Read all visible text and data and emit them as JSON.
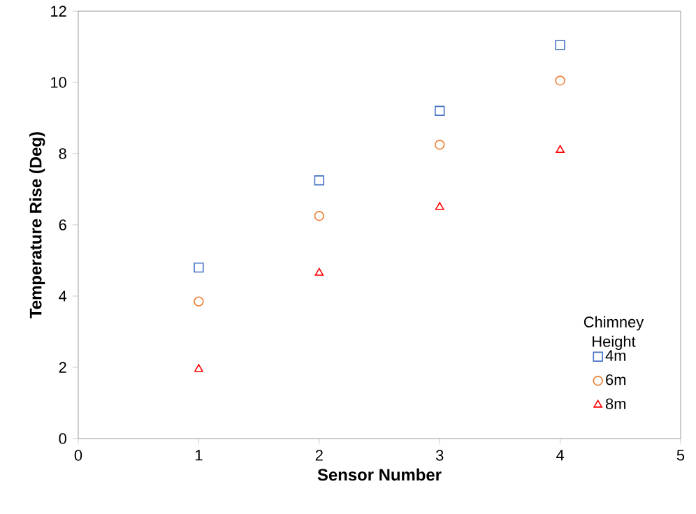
{
  "chart_data": {
    "type": "scatter",
    "xlabel": "Sensor Number",
    "ylabel": "Temperature Rise (Deg)",
    "legend_title": "Chimney Height",
    "x": [
      1,
      2,
      3,
      4
    ],
    "series": [
      {
        "name": "4m",
        "color": "#4472c4",
        "marker": "square",
        "values": [
          4.8,
          7.25,
          9.2,
          11.05
        ]
      },
      {
        "name": "6m",
        "color": "#ed7d31",
        "marker": "circle",
        "values": [
          3.85,
          6.25,
          8.25,
          10.05
        ]
      },
      {
        "name": "8m",
        "color": "#ff0000",
        "marker": "triangle",
        "values": [
          1.95,
          4.65,
          6.5,
          8.1
        ]
      }
    ],
    "xlim": [
      0,
      5
    ],
    "xticks": [
      0,
      1,
      2,
      3,
      4,
      5
    ],
    "ylim": [
      0,
      12
    ],
    "yticks": [
      0,
      2,
      4,
      6,
      8,
      10,
      12
    ],
    "grid": false,
    "legend": "bottom right"
  }
}
